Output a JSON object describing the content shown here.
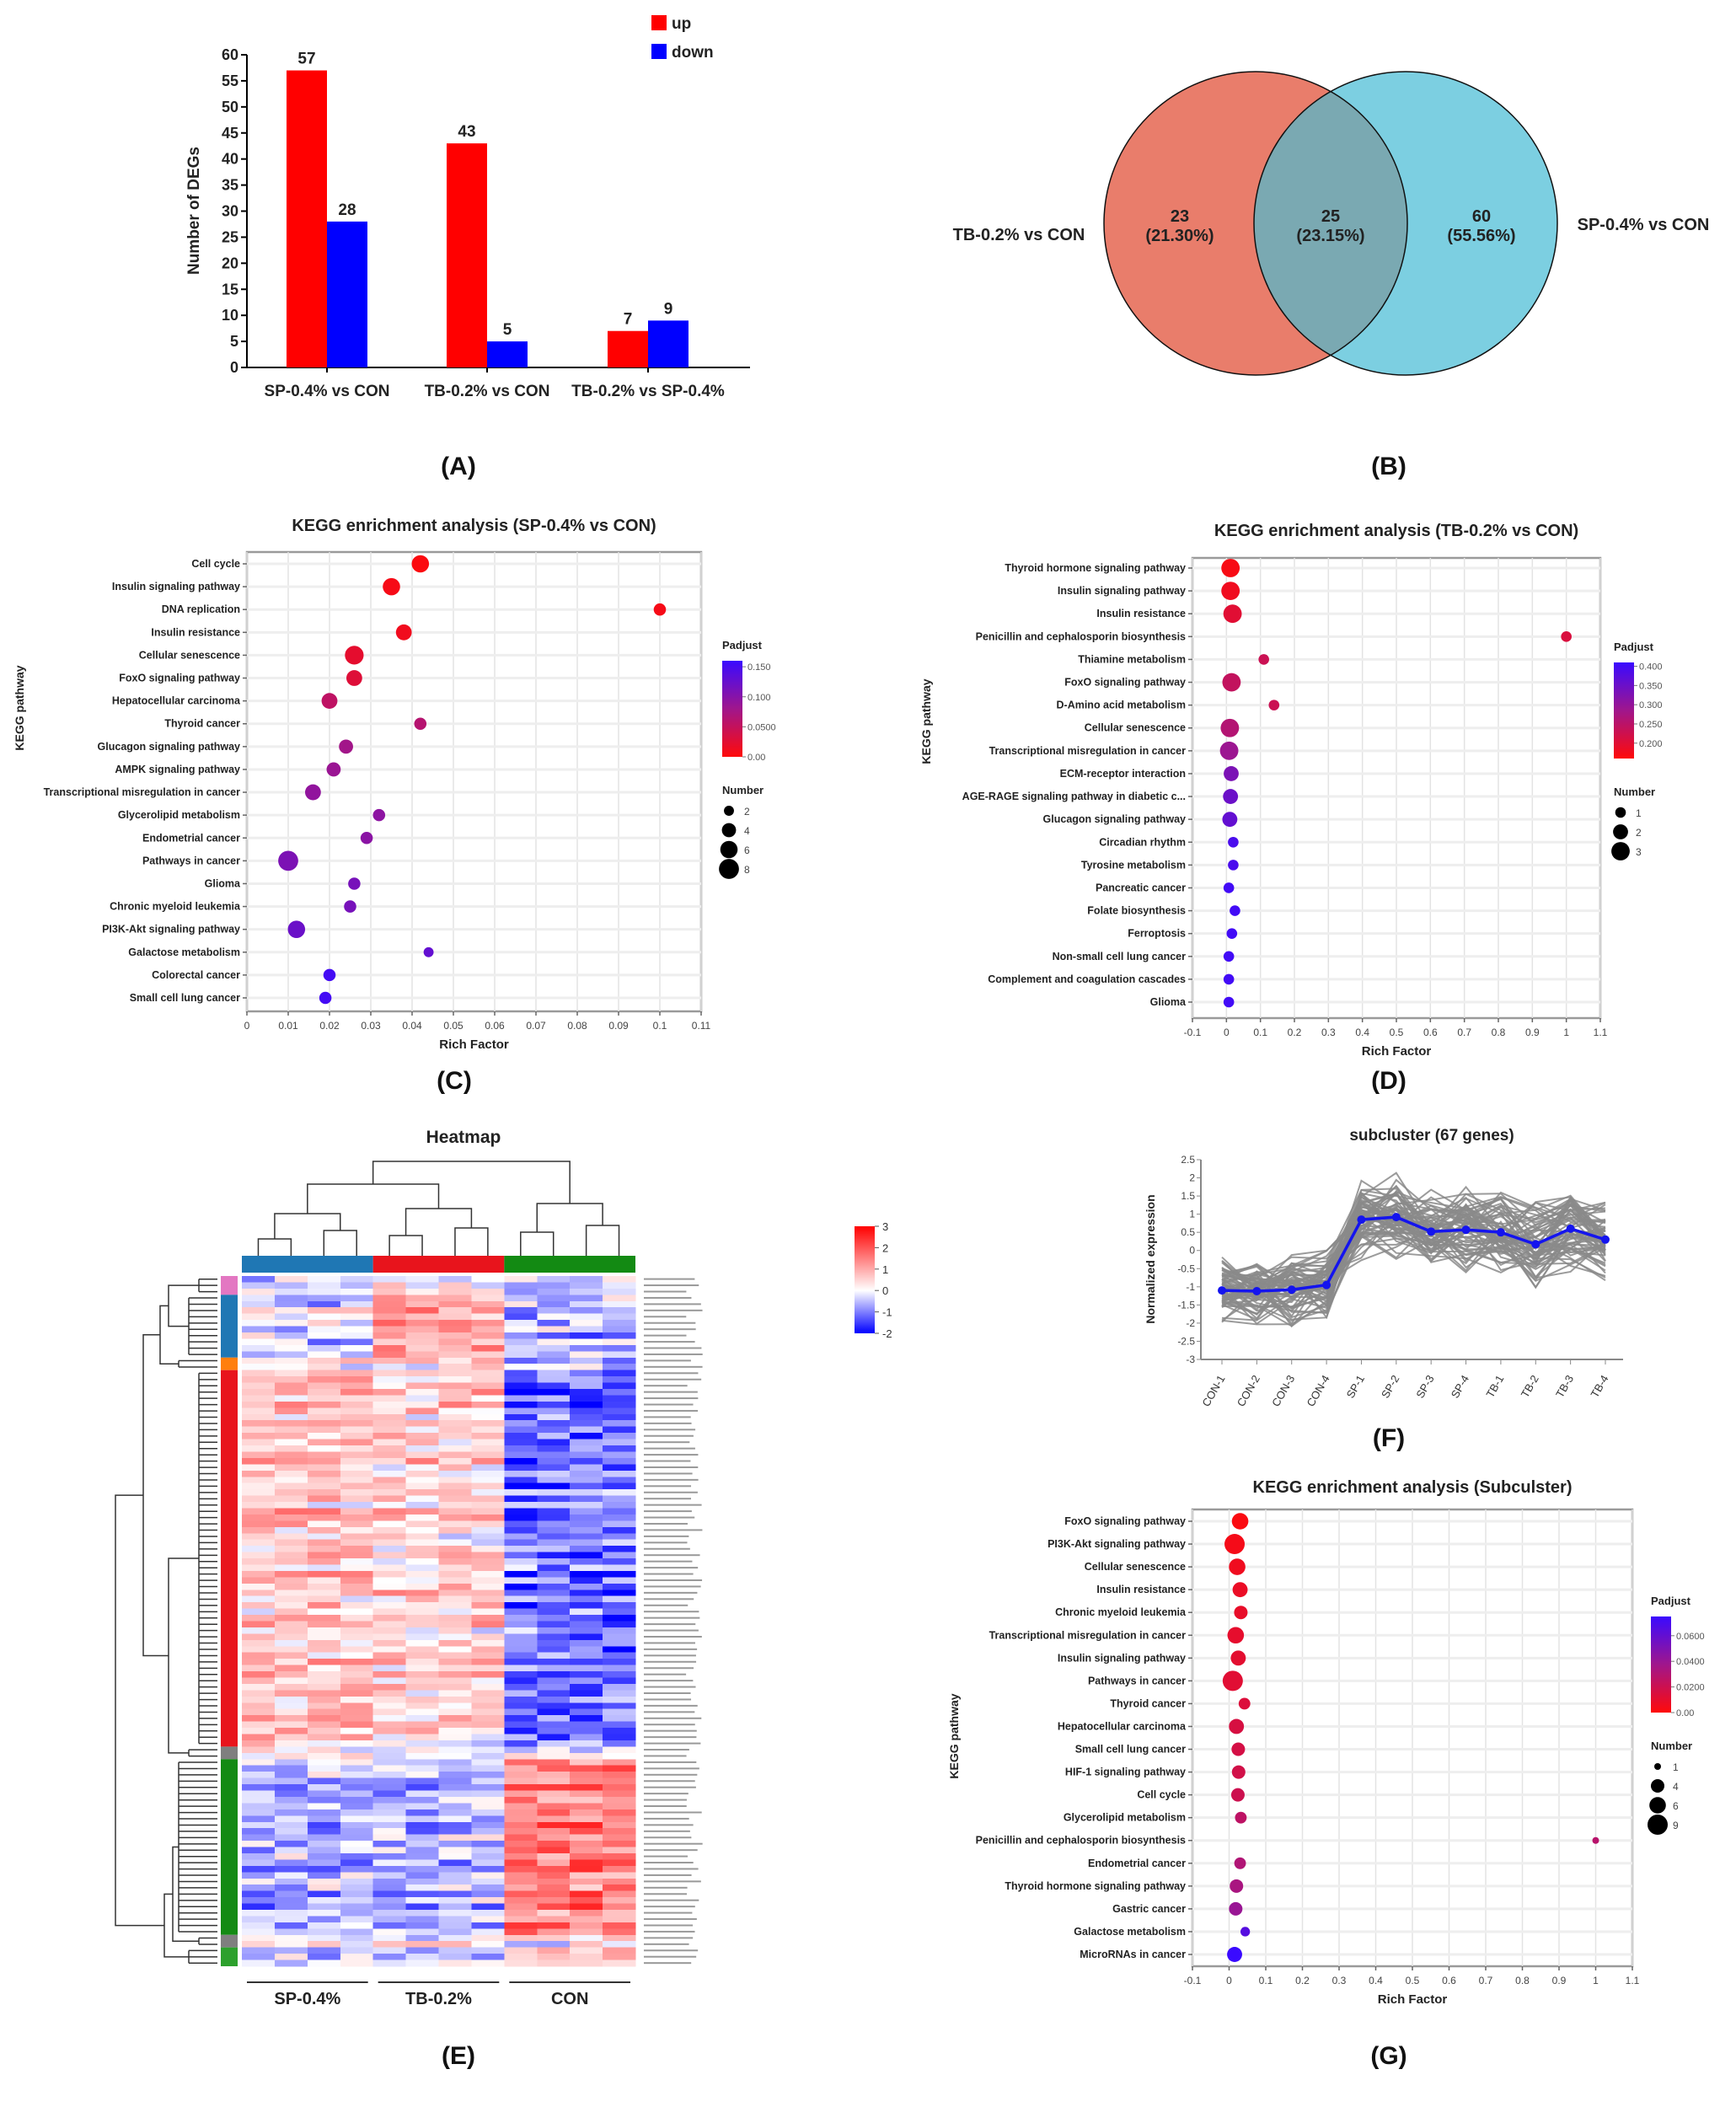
{
  "panel_labels": [
    "(A)",
    "(B)",
    "(C)",
    "(D)",
    "(E)",
    "(F)",
    "(G)"
  ],
  "chart_data": [
    {
      "type": "bar",
      "categories": [
        "SP-0.4% vs CON",
        "TB-0.2% vs CON",
        "TB-0.2% vs SP-0.4%"
      ],
      "series": [
        {
          "name": "up",
          "values": [
            57,
            43,
            7
          ],
          "color": "#ff0000"
        },
        {
          "name": "down",
          "values": [
            28,
            5,
            9
          ],
          "color": "#0000ff"
        }
      ],
      "ylabel": "Number of DEGs",
      "ylim": [
        0,
        60
      ],
      "yticks": [
        0,
        5,
        10,
        15,
        20,
        25,
        30,
        35,
        40,
        45,
        50,
        55,
        60
      ],
      "legend": "top-right"
    },
    {
      "type": "venn",
      "sets": [
        "TB-0.2% vs CON",
        "SP-0.4% vs CON"
      ],
      "regions": [
        {
          "count": "23",
          "percent": "(21.30%)"
        },
        {
          "count": "25",
          "percent": "(23.15%)"
        },
        {
          "count": "60",
          "percent": "(55.56%)"
        }
      ],
      "colors": [
        "#e97d6b",
        "#7ccfe1",
        "#7aa9b2"
      ]
    },
    {
      "type": "scatter",
      "title": "KEGG enrichment analysis (SP-0.4% vs CON)",
      "xlabel": "Rich Factor",
      "ylabel": "KEGG pathway",
      "xlim": [
        0,
        0.11
      ],
      "xticks": [
        0,
        0.01,
        0.02,
        0.03,
        0.04,
        0.05,
        0.06,
        0.07,
        0.08,
        0.09,
        0.1,
        0.11
      ],
      "padjust_range": [
        0,
        0.16
      ],
      "padjust_title": "Padjust",
      "padjust_ticks": [
        {
          "v": 0.15,
          "label": "0.150"
        },
        {
          "v": 0.1,
          "label": "0.100"
        },
        {
          "v": 0.05,
          "label": "0.0500"
        },
        {
          "v": 0,
          "label": "0.00"
        }
      ],
      "number_title": "Number",
      "number_legend": [
        2,
        4,
        6,
        8
      ],
      "rows": [
        {
          "pathway": "Cell cycle",
          "rich": 0.042,
          "number": 6,
          "padj": 0.003
        },
        {
          "pathway": "Insulin signaling pathway",
          "rich": 0.035,
          "number": 6,
          "padj": 0.008
        },
        {
          "pathway": "DNA replication",
          "rich": 0.1,
          "number": 3,
          "padj": 0.008
        },
        {
          "pathway": "Insulin resistance",
          "rich": 0.038,
          "number": 5,
          "padj": 0.012
        },
        {
          "pathway": "Cellular senescence",
          "rich": 0.026,
          "number": 7,
          "padj": 0.022
        },
        {
          "pathway": "FoxO signaling pathway",
          "rich": 0.026,
          "number": 5,
          "padj": 0.028
        },
        {
          "pathway": "Hepatocellular carcinoma",
          "rich": 0.02,
          "number": 5,
          "padj": 0.055
        },
        {
          "pathway": "Thyroid cancer",
          "rich": 0.042,
          "number": 3,
          "padj": 0.062
        },
        {
          "pathway": "Glucagon signaling pathway",
          "rich": 0.024,
          "number": 4,
          "padj": 0.078
        },
        {
          "pathway": "AMPK signaling pathway",
          "rich": 0.021,
          "number": 4,
          "padj": 0.085
        },
        {
          "pathway": "Transcriptional misregulation in cancer",
          "rich": 0.016,
          "number": 5,
          "padj": 0.092
        },
        {
          "pathway": "Glycerolipid metabolism",
          "rich": 0.032,
          "number": 3,
          "padj": 0.095
        },
        {
          "pathway": "Endometrial cancer",
          "rich": 0.029,
          "number": 3,
          "padj": 0.097
        },
        {
          "pathway": "Pathways in cancer",
          "rich": 0.01,
          "number": 8,
          "padj": 0.108
        },
        {
          "pathway": "Glioma",
          "rich": 0.026,
          "number": 3,
          "padj": 0.112
        },
        {
          "pathway": "Chronic myeloid leukemia",
          "rich": 0.025,
          "number": 3,
          "padj": 0.112
        },
        {
          "pathway": "PI3K-Akt signaling pathway",
          "rich": 0.012,
          "number": 6,
          "padj": 0.122
        },
        {
          "pathway": "Galactose metabolism",
          "rich": 0.044,
          "number": 2,
          "padj": 0.128
        },
        {
          "pathway": "Colorectal cancer",
          "rich": 0.02,
          "number": 3,
          "padj": 0.152
        },
        {
          "pathway": "Small cell lung cancer",
          "rich": 0.019,
          "number": 3,
          "padj": 0.152
        }
      ]
    },
    {
      "type": "scatter",
      "title": "KEGG enrichment analysis (TB-0.2% vs CON)",
      "xlabel": "Rich Factor",
      "ylabel": "KEGG pathway",
      "xlim": [
        -0.1,
        1.1
      ],
      "xticks": [
        -0.1,
        0,
        0.1,
        0.2,
        0.3,
        0.4,
        0.5,
        0.6,
        0.7,
        0.8,
        0.9,
        1,
        1.1
      ],
      "padjust_range": [
        0.16,
        0.41
      ],
      "padjust_title": "Padjust",
      "padjust_ticks": [
        {
          "v": 0.4,
          "label": "0.400"
        },
        {
          "v": 0.35,
          "label": "0.350"
        },
        {
          "v": 0.3,
          "label": "0.300"
        },
        {
          "v": 0.25,
          "label": "0.250"
        },
        {
          "v": 0.2,
          "label": "0.200"
        }
      ],
      "number_title": "Number",
      "number_legend": [
        1,
        2,
        3
      ],
      "rows": [
        {
          "pathway": "Thyroid hormone signaling pathway",
          "rich": 0.012,
          "number": 3,
          "padj": 0.17
        },
        {
          "pathway": "Insulin signaling pathway",
          "rich": 0.012,
          "number": 3,
          "padj": 0.18
        },
        {
          "pathway": "Insulin resistance",
          "rich": 0.018,
          "number": 3,
          "padj": 0.2
        },
        {
          "pathway": "Penicillin and cephalosporin biosynthesis",
          "rich": 1.0,
          "number": 1,
          "padj": 0.21
        },
        {
          "pathway": "Thiamine metabolism",
          "rich": 0.11,
          "number": 1,
          "padj": 0.23
        },
        {
          "pathway": "FoxO signaling pathway",
          "rich": 0.015,
          "number": 3,
          "padj": 0.24
        },
        {
          "pathway": "D-Amino acid metabolism",
          "rich": 0.14,
          "number": 1,
          "padj": 0.23
        },
        {
          "pathway": "Cellular senescence",
          "rich": 0.01,
          "number": 3,
          "padj": 0.26
        },
        {
          "pathway": "Transcriptional misregulation in cancer",
          "rich": 0.008,
          "number": 3,
          "padj": 0.29
        },
        {
          "pathway": "ECM-receptor interaction",
          "rich": 0.014,
          "number": 2,
          "padj": 0.33
        },
        {
          "pathway": "AGE-RAGE signaling pathway in diabetic c...",
          "rich": 0.012,
          "number": 2,
          "padj": 0.35
        },
        {
          "pathway": "Glucagon signaling pathway",
          "rich": 0.01,
          "number": 2,
          "padj": 0.36
        },
        {
          "pathway": "Circadian rhythm",
          "rich": 0.02,
          "number": 1,
          "padj": 0.39
        },
        {
          "pathway": "Tyrosine metabolism",
          "rich": 0.02,
          "number": 1,
          "padj": 0.39
        },
        {
          "pathway": "Pancreatic cancer",
          "rich": 0.007,
          "number": 1,
          "padj": 0.4
        },
        {
          "pathway": "Folate biosynthesis",
          "rich": 0.025,
          "number": 1,
          "padj": 0.4
        },
        {
          "pathway": "Ferroptosis",
          "rich": 0.016,
          "number": 1,
          "padj": 0.4
        },
        {
          "pathway": "Non-small cell lung cancer",
          "rich": 0.007,
          "number": 1,
          "padj": 0.4
        },
        {
          "pathway": "Complement and coagulation cascades",
          "rich": 0.007,
          "number": 1,
          "padj": 0.4
        },
        {
          "pathway": "Glioma",
          "rich": 0.007,
          "number": 1,
          "padj": 0.4
        }
      ]
    },
    {
      "type": "heatmap",
      "title": "Heatmap",
      "groups": [
        {
          "name": "SP-0.4%",
          "color": "#1f77b4",
          "samples": 4
        },
        {
          "name": "TB-0.2%",
          "color": "#e8141c",
          "samples": 4
        },
        {
          "name": "CON",
          "color": "#138a13",
          "samples": 4
        }
      ],
      "scale_ticks": [
        3,
        2,
        1,
        0,
        -1,
        -2
      ],
      "scale_range": [
        -2,
        3
      ],
      "row_clusters": [
        {
          "color": "#e377c2",
          "rows": 3,
          "mean_z": [
            0.0,
            0.3,
            -0.5
          ]
        },
        {
          "color": "#1f77b4",
          "rows": 10,
          "mean_z": [
            -0.3,
            1.0,
            -0.6
          ]
        },
        {
          "color": "#ff7f0e",
          "rows": 2,
          "mean_z": [
            0.0,
            0.5,
            -0.8
          ]
        },
        {
          "color": "#e8141c",
          "rows": 60,
          "mean_z": [
            0.7,
            0.5,
            -1.2
          ]
        },
        {
          "color": "#7f7f7f",
          "rows": 2,
          "mean_z": [
            0.0,
            0.0,
            0.0
          ]
        },
        {
          "color": "#138a13",
          "rows": 28,
          "mean_z": [
            -0.6,
            -0.5,
            1.5
          ]
        },
        {
          "color": "#7f7f7f",
          "rows": 2,
          "mean_z": [
            0.0,
            0.0,
            0.2
          ]
        },
        {
          "color": "#2ca02c",
          "rows": 3,
          "mean_z": [
            -0.3,
            -0.3,
            0.6
          ]
        }
      ]
    },
    {
      "type": "line",
      "title": "subcluster (67 genes)",
      "ylabel": "Normalized expression",
      "x": [
        "CON-1",
        "CON-2",
        "CON-3",
        "CON-4",
        "SP-1",
        "SP-2",
        "SP-3",
        "SP-4",
        "TB-1",
        "TB-2",
        "TB-3",
        "TB-4"
      ],
      "ylim": [
        -3,
        2.5
      ],
      "yticks": [
        2.5,
        2,
        1.5,
        1,
        0.5,
        0,
        -0.5,
        -1,
        -1.5,
        -2,
        -2.5,
        -3
      ],
      "mean_series": {
        "name": "mean",
        "color": "#1414ee",
        "values": [
          -1.1,
          -1.12,
          -1.08,
          -0.95,
          0.85,
          0.92,
          0.52,
          0.57,
          0.5,
          0.17,
          0.6,
          0.3
        ]
      },
      "gene_count": 67,
      "gene_color": "#8a8a8a"
    },
    {
      "type": "scatter",
      "title": "KEGG enrichment analysis (Subculster)",
      "xlabel": "Rich Factor",
      "ylabel": "KEGG pathway",
      "xlim": [
        -0.1,
        1.1
      ],
      "xticks": [
        -0.1,
        0,
        0.1,
        0.2,
        0.3,
        0.4,
        0.5,
        0.6,
        0.7,
        0.8,
        0.9,
        1,
        1.1
      ],
      "padjust_range": [
        0,
        0.075
      ],
      "padjust_title": "Padjust",
      "padjust_ticks": [
        {
          "v": 0.06,
          "label": "0.0600"
        },
        {
          "v": 0.04,
          "label": "0.0400"
        },
        {
          "v": 0.02,
          "label": "0.0200"
        },
        {
          "v": 0,
          "label": "0.00"
        }
      ],
      "number_title": "Number",
      "number_legend": [
        1,
        4,
        6,
        9
      ],
      "rows": [
        {
          "pathway": "FoxO signaling pathway",
          "rich": 0.03,
          "number": 6,
          "padj": 0.002
        },
        {
          "pathway": "PI3K-Akt signaling pathway",
          "rich": 0.015,
          "number": 9,
          "padj": 0.004
        },
        {
          "pathway": "Cellular senescence",
          "rich": 0.022,
          "number": 6,
          "padj": 0.006
        },
        {
          "pathway": "Insulin resistance",
          "rich": 0.03,
          "number": 5,
          "padj": 0.008
        },
        {
          "pathway": "Chronic myeloid leukemia",
          "rich": 0.032,
          "number": 4,
          "padj": 0.009
        },
        {
          "pathway": "Transcriptional misregulation in cancer",
          "rich": 0.018,
          "number": 6,
          "padj": 0.01
        },
        {
          "pathway": "Insulin signaling pathway",
          "rich": 0.025,
          "number": 5,
          "padj": 0.011
        },
        {
          "pathway": "Pathways in cancer",
          "rich": 0.01,
          "number": 9,
          "padj": 0.012
        },
        {
          "pathway": "Thyroid cancer",
          "rich": 0.042,
          "number": 3,
          "padj": 0.014
        },
        {
          "pathway": "Hepatocellular carcinoma",
          "rich": 0.02,
          "number": 5,
          "padj": 0.016
        },
        {
          "pathway": "Small cell lung cancer",
          "rich": 0.025,
          "number": 4,
          "padj": 0.017
        },
        {
          "pathway": "HIF-1 signaling pathway",
          "rich": 0.026,
          "number": 4,
          "padj": 0.018
        },
        {
          "pathway": "Cell cycle",
          "rich": 0.024,
          "number": 4,
          "padj": 0.02
        },
        {
          "pathway": "Glycerolipid metabolism",
          "rich": 0.032,
          "number": 3,
          "padj": 0.026
        },
        {
          "pathway": "Penicillin and cephalosporin biosynthesis",
          "rich": 1.0,
          "number": 1,
          "padj": 0.028
        },
        {
          "pathway": "Endometrial cancer",
          "rich": 0.03,
          "number": 3,
          "padj": 0.031
        },
        {
          "pathway": "Thyroid hormone signaling pathway",
          "rich": 0.02,
          "number": 4,
          "padj": 0.034
        },
        {
          "pathway": "Gastric cancer",
          "rich": 0.018,
          "number": 4,
          "padj": 0.04
        },
        {
          "pathway": "Galactose metabolism",
          "rich": 0.044,
          "number": 2,
          "padj": 0.065
        },
        {
          "pathway": "MicroRNAs in cancer",
          "rich": 0.015,
          "number": 5,
          "padj": 0.075
        }
      ]
    }
  ]
}
